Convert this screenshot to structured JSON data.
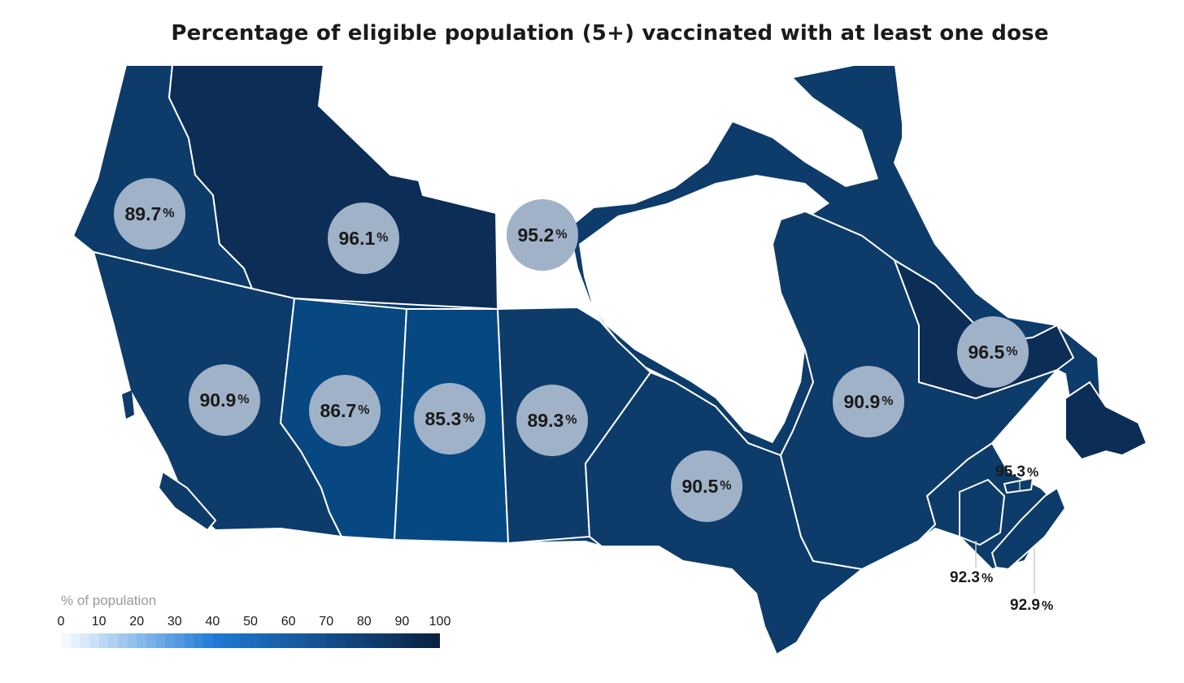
{
  "title": "Percentage of eligible population (5+) vaccinated with at least one dose",
  "colors": {
    "land": "#0d3c6b",
    "dark_region": "#0b2d56",
    "mid_region": "#074782",
    "water": "#ffffff",
    "bubble": "#9fb2c8",
    "border": "#ffffff"
  },
  "regions": [
    {
      "name": "Yukon",
      "value": "89.7",
      "unit": "%"
    },
    {
      "name": "Northwest Territories",
      "value": "96.1",
      "unit": "%"
    },
    {
      "name": "Nunavut",
      "value": "95.2",
      "unit": "%"
    },
    {
      "name": "British Columbia",
      "value": "90.9",
      "unit": "%"
    },
    {
      "name": "Alberta",
      "value": "86.7",
      "unit": "%"
    },
    {
      "name": "Saskatchewan",
      "value": "85.3",
      "unit": "%"
    },
    {
      "name": "Manitoba",
      "value": "89.3",
      "unit": "%"
    },
    {
      "name": "Ontario",
      "value": "90.5",
      "unit": "%"
    },
    {
      "name": "Quebec",
      "value": "90.9",
      "unit": "%"
    },
    {
      "name": "Newfoundland and Labrador",
      "value": "96.5",
      "unit": "%"
    },
    {
      "name": "Prince Edward Island",
      "value": "95.3",
      "unit": "%"
    },
    {
      "name": "New Brunswick",
      "value": "92.3",
      "unit": "%"
    },
    {
      "name": "Nova Scotia",
      "value": "92.9",
      "unit": "%"
    }
  ],
  "legend": {
    "title": "% of population",
    "ticks": [
      "0",
      "10",
      "20",
      "30",
      "40",
      "50",
      "60",
      "70",
      "80",
      "90",
      "100"
    ],
    "ramp_start": "#f4f9ff",
    "ramp_mid": "#1f7ad6",
    "ramp_end": "#0a2344"
  }
}
